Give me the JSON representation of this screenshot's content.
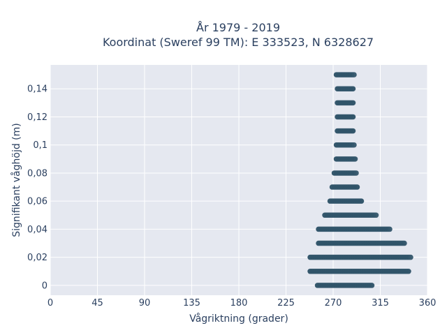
{
  "chart_data": {
    "type": "scatter",
    "title_line1": "År 1979 - 2019",
    "title_line2": "Koordinat (Sweref 99 TM): E 333523, N 6328627",
    "xlabel": "Vågriktning (grader)",
    "ylabel": "Signifikant våghöjd (m)",
    "xlim": [
      0,
      360
    ],
    "ylim": [
      -0.007,
      0.157
    ],
    "x_ticks": [
      0,
      45,
      90,
      135,
      180,
      225,
      270,
      315,
      360
    ],
    "x_tick_labels": [
      "0",
      "45",
      "90",
      "135",
      "180",
      "225",
      "270",
      "315",
      "360"
    ],
    "y_ticks": [
      0,
      0.02,
      0.04,
      0.06,
      0.08,
      0.1,
      0.12,
      0.14
    ],
    "y_tick_labels": [
      "0",
      "0,02",
      "0,04",
      "0,06",
      "0,08",
      "0,1",
      "0,12",
      "0,14"
    ],
    "grid": true,
    "marker_color": "#2e5268",
    "plot_background": "#e5e8f0",
    "points_description": "dense horizontal bands of points at each 0.01 m height level",
    "bands": [
      {
        "y": 0.0,
        "x_min": 255,
        "x_max": 307
      },
      {
        "y": 0.01,
        "x_min": 248,
        "x_max": 342
      },
      {
        "y": 0.02,
        "x_min": 248,
        "x_max": 344
      },
      {
        "y": 0.03,
        "x_min": 256,
        "x_max": 338
      },
      {
        "y": 0.04,
        "x_min": 256,
        "x_max": 324
      },
      {
        "y": 0.05,
        "x_min": 262,
        "x_max": 311
      },
      {
        "y": 0.06,
        "x_min": 267,
        "x_max": 297
      },
      {
        "y": 0.07,
        "x_min": 269,
        "x_max": 293
      },
      {
        "y": 0.08,
        "x_min": 271,
        "x_max": 292
      },
      {
        "y": 0.09,
        "x_min": 273,
        "x_max": 291
      },
      {
        "y": 0.1,
        "x_min": 273,
        "x_max": 290
      },
      {
        "y": 0.11,
        "x_min": 274,
        "x_max": 289
      },
      {
        "y": 0.12,
        "x_min": 274,
        "x_max": 289
      },
      {
        "y": 0.13,
        "x_min": 274,
        "x_max": 289
      },
      {
        "y": 0.14,
        "x_min": 274,
        "x_max": 289
      },
      {
        "y": 0.15,
        "x_min": 273,
        "x_max": 290
      }
    ]
  }
}
